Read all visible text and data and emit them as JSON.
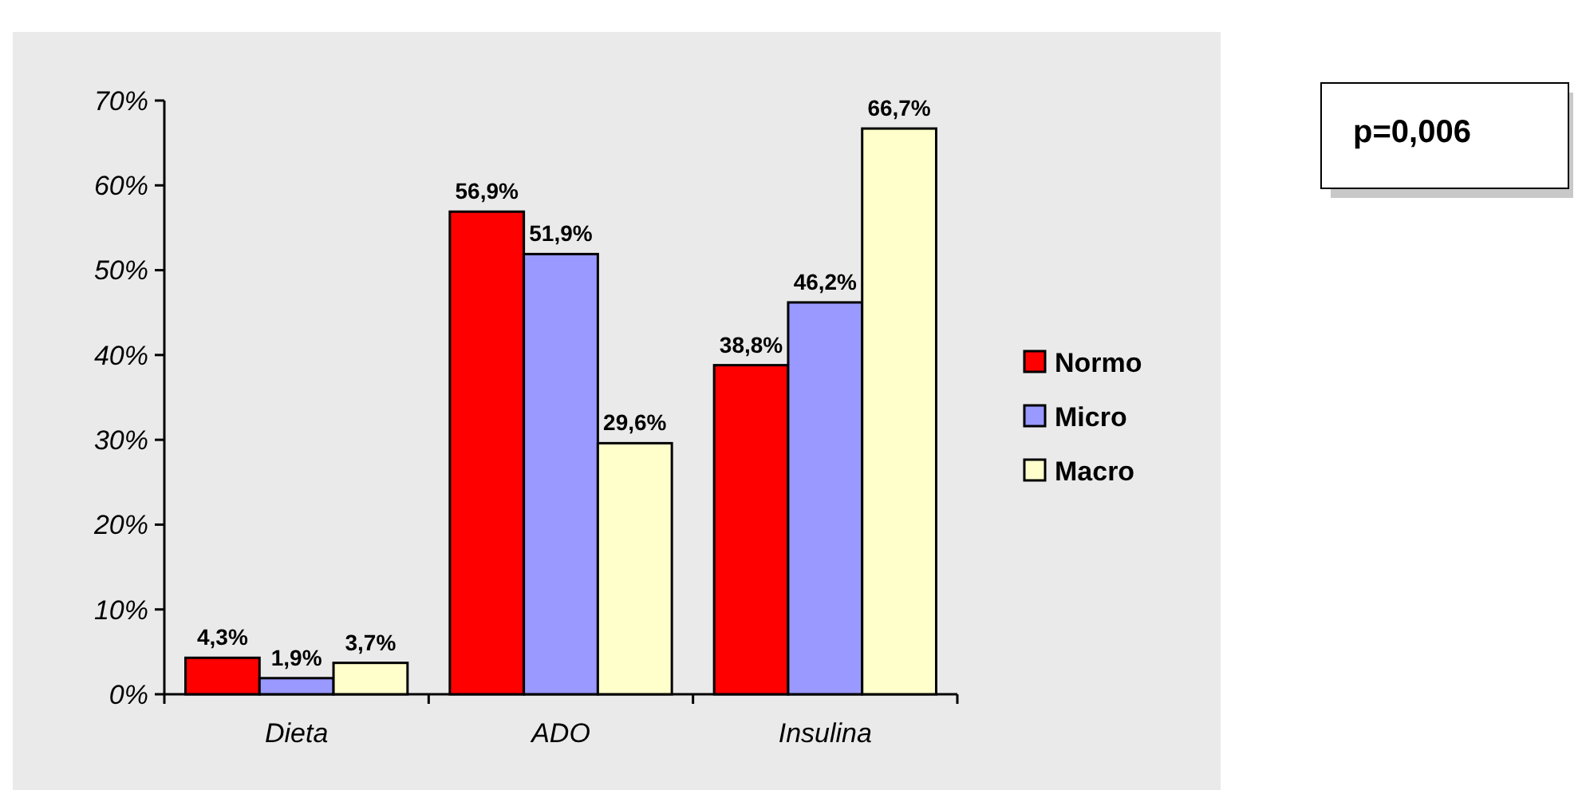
{
  "chart_data": {
    "type": "bar",
    "categories": [
      "Dieta",
      "ADO",
      "Insulina"
    ],
    "series": [
      {
        "name": "Normo",
        "color": "#ff0000",
        "values": [
          4.3,
          56.9,
          38.8
        ],
        "value_labels": [
          "4,3%",
          "56,9%",
          "38,8%"
        ]
      },
      {
        "name": "Micro",
        "color": "#9999ff",
        "values": [
          1.9,
          51.9,
          46.2
        ],
        "value_labels": [
          "1,9%",
          "51,9%",
          "46,2%"
        ]
      },
      {
        "name": "Macro",
        "color": "#ffffcc",
        "values": [
          3.7,
          29.6,
          66.7
        ],
        "value_labels": [
          "3,7%",
          "29,6%",
          "66,7%"
        ]
      }
    ],
    "ylim": [
      0,
      70
    ],
    "yticks": [
      {
        "value": 0,
        "label": "0%"
      },
      {
        "value": 10,
        "label": "10%"
      },
      {
        "value": 20,
        "label": "20%"
      },
      {
        "value": 30,
        "label": "30%"
      },
      {
        "value": 40,
        "label": "40%"
      },
      {
        "value": 50,
        "label": "50%"
      },
      {
        "value": 60,
        "label": "60%"
      },
      {
        "value": 70,
        "label": "70%"
      }
    ],
    "grid": false,
    "legend": "right",
    "annotations": [
      "p=0,006"
    ]
  }
}
